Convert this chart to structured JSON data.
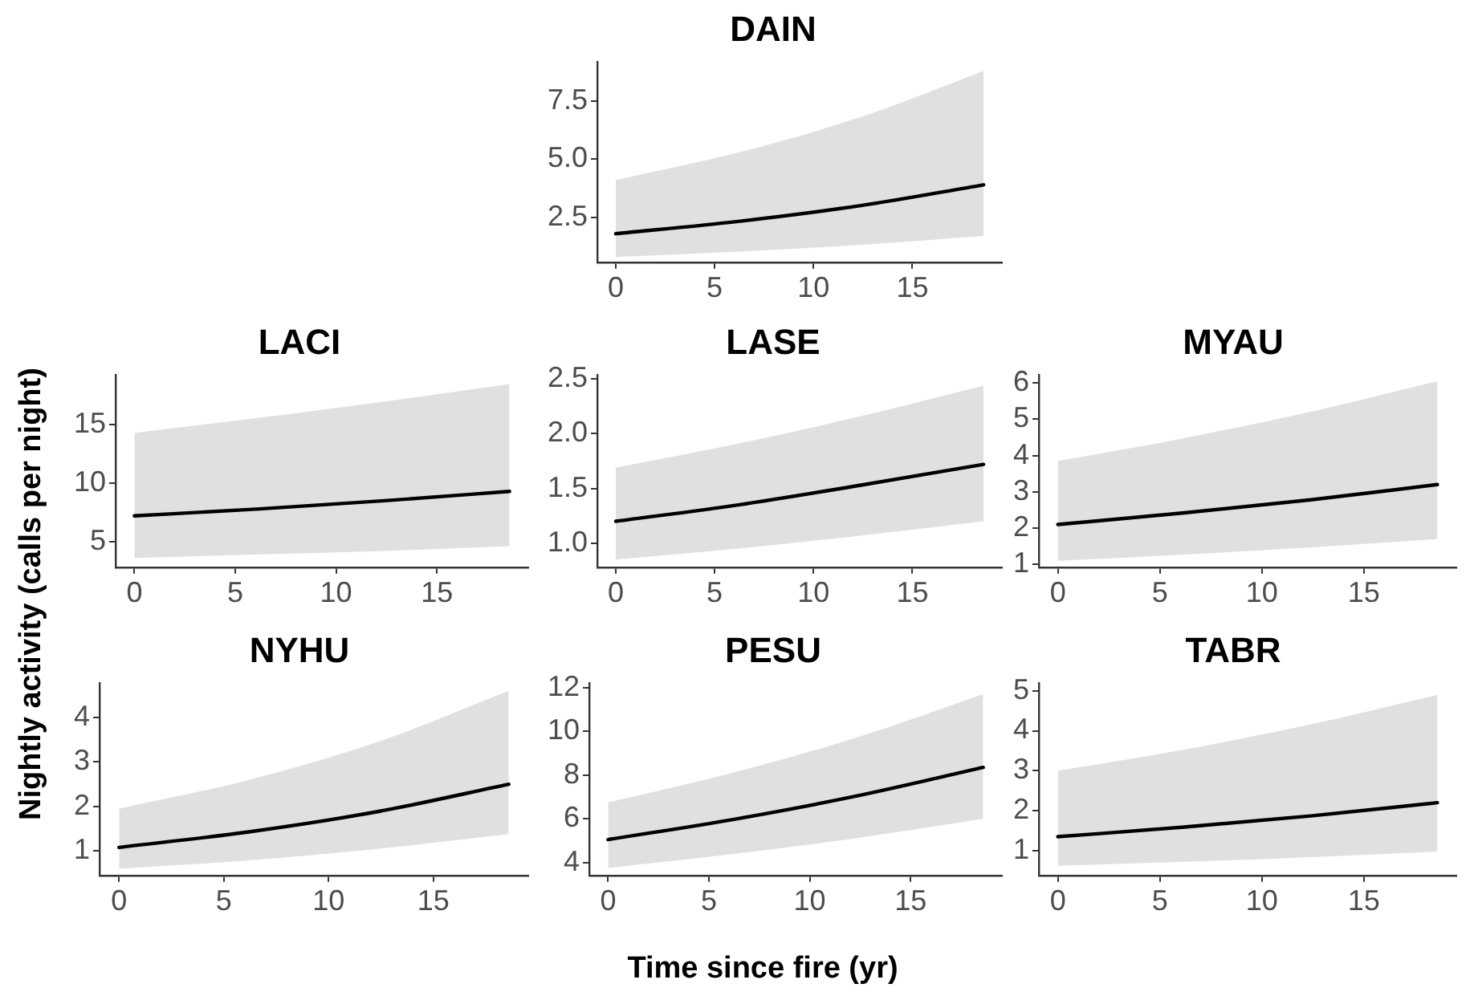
{
  "chart_data": [
    {
      "type": "line",
      "title": "DAIN",
      "xlabel": "Time since fire (yr)",
      "ylabel": "Nightly activity (calls per night)",
      "x": [
        0,
        6.2,
        12.4,
        18.6
      ],
      "xlim": [
        -0.93,
        19.53
      ],
      "xticks": [
        0,
        5,
        10,
        15
      ],
      "ylim": [
        0.57,
        9.2
      ],
      "yticks": [
        2.5,
        {
          "value": 5,
          "label": "5.0"
        },
        7.5
      ],
      "grid": false,
      "legend": false,
      "series": [
        {
          "color": "#000000",
          "values": [
            1.8,
            2.33,
            3.01,
            3.9
          ],
          "lower": [
            0.8,
            1.03,
            1.32,
            1.7
          ],
          "upper": [
            4.1,
            5.29,
            6.82,
            8.8
          ]
        }
      ]
    },
    {
      "type": "line",
      "title": "LACI",
      "x": [
        0,
        6.2,
        12.4,
        18.6
      ],
      "xlim": [
        -0.93,
        19.53
      ],
      "xticks": [
        0,
        5,
        10,
        15
      ],
      "ylim": [
        2.8,
        19.3
      ],
      "yticks": [
        5,
        10,
        15
      ],
      "grid": false,
      "legend": false,
      "series": [
        {
          "color": "#000000",
          "values": [
            7.2,
            7.8,
            8.5,
            9.3
          ],
          "lower": [
            3.6,
            3.9,
            4.2,
            4.6
          ],
          "upper": [
            14.3,
            15.6,
            17.0,
            18.5
          ]
        }
      ]
    },
    {
      "type": "line",
      "title": "LASE",
      "x": [
        0,
        6.2,
        12.4,
        18.6
      ],
      "xlim": [
        -0.93,
        19.53
      ],
      "xticks": [
        0,
        5,
        10,
        15
      ],
      "ylim": [
        0.78,
        2.54
      ],
      "yticks": [
        {
          "value": 1,
          "label": "1.0"
        },
        1.5,
        {
          "value": 2,
          "label": "2.0"
        },
        2.5
      ],
      "grid": false,
      "legend": false,
      "series": [
        {
          "color": "#000000",
          "values": [
            1.2,
            1.35,
            1.53,
            1.72
          ],
          "lower": [
            0.85,
            0.95,
            1.07,
            1.2
          ],
          "upper": [
            1.69,
            1.91,
            2.16,
            2.44
          ]
        }
      ]
    },
    {
      "type": "line",
      "title": "MYAU",
      "x": [
        0,
        6.2,
        12.4,
        18.6
      ],
      "xlim": [
        -0.93,
        19.53
      ],
      "xticks": [
        0,
        5,
        10,
        15
      ],
      "ylim": [
        0.92,
        6.23
      ],
      "yticks": [
        1,
        2,
        3,
        4,
        5,
        6
      ],
      "grid": false,
      "legend": false,
      "series": [
        {
          "color": "#000000",
          "values": [
            2.1,
            2.42,
            2.78,
            3.2
          ],
          "lower": [
            1.1,
            1.27,
            1.47,
            1.7
          ],
          "upper": [
            3.85,
            4.48,
            5.21,
            6.05
          ]
        }
      ]
    },
    {
      "type": "line",
      "title": "NYHU",
      "x": [
        0,
        6.2,
        12.4,
        18.6
      ],
      "xlim": [
        -0.93,
        19.53
      ],
      "xticks": [
        0,
        5,
        10,
        15
      ],
      "ylim": [
        0.45,
        4.78
      ],
      "yticks": [
        1,
        2,
        3,
        4
      ],
      "grid": false,
      "legend": false,
      "series": [
        {
          "color": "#000000",
          "values": [
            1.08,
            1.43,
            1.89,
            2.5
          ],
          "lower": [
            0.6,
            0.79,
            1.05,
            1.38
          ],
          "upper": [
            1.95,
            2.6,
            3.46,
            4.6
          ]
        }
      ]
    },
    {
      "type": "line",
      "title": "PESU",
      "x": [
        0,
        6.2,
        12.4,
        18.6
      ],
      "xlim": [
        -0.93,
        19.53
      ],
      "xticks": [
        0,
        5,
        10,
        15
      ],
      "ylim": [
        3.41,
        12.22
      ],
      "yticks": [
        4,
        6,
        8,
        10,
        12
      ],
      "grid": false,
      "legend": false,
      "series": [
        {
          "color": "#000000",
          "values": [
            5.05,
            5.97,
            7.06,
            8.35
          ],
          "lower": [
            3.75,
            4.39,
            5.13,
            6.0
          ],
          "upper": [
            6.75,
            8.11,
            9.74,
            11.7
          ]
        }
      ]
    },
    {
      "type": "line",
      "title": "TABR",
      "x": [
        0,
        6.2,
        12.4,
        18.6
      ],
      "xlim": [
        -0.93,
        19.53
      ],
      "xticks": [
        0,
        5,
        10,
        15
      ],
      "ylim": [
        0.38,
        5.2
      ],
      "yticks": [
        1,
        2,
        3,
        4,
        5
      ],
      "grid": false,
      "legend": false,
      "series": [
        {
          "color": "#000000",
          "values": [
            1.35,
            1.59,
            1.87,
            2.2
          ],
          "lower": [
            0.62,
            0.72,
            0.84,
            0.98
          ],
          "upper": [
            3.0,
            3.53,
            4.16,
            4.9
          ]
        }
      ]
    }
  ]
}
